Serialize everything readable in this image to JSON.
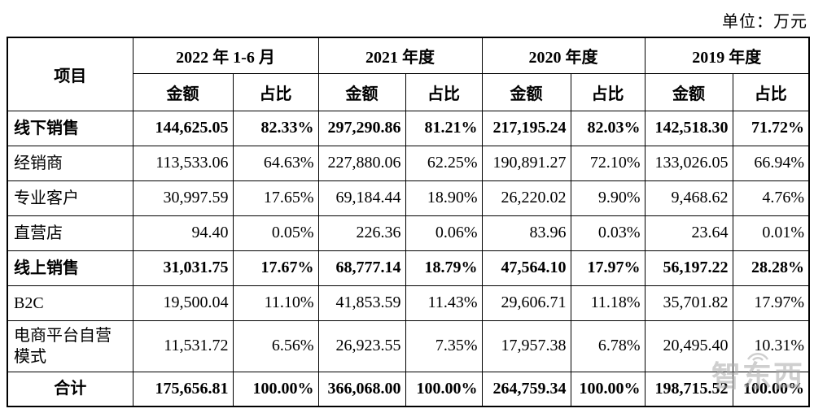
{
  "unit_label": "单位：万元",
  "watermark": {
    "text": "智东西"
  },
  "table": {
    "item_header": "项目",
    "col_groups": [
      {
        "label": "2022 年 1-6 月"
      },
      {
        "label": "2021 年度"
      },
      {
        "label": "2020 年度"
      },
      {
        "label": "2019 年度"
      }
    ],
    "sub_headers": {
      "amount": "金额",
      "ratio": "占比"
    },
    "rows": [
      {
        "label": "线下销售",
        "bold": true,
        "total": false,
        "values": [
          "144,625.05",
          "82.33%",
          "297,290.86",
          "81.21%",
          "217,195.24",
          "82.03%",
          "142,518.30",
          "71.72%"
        ]
      },
      {
        "label": "经销商",
        "bold": false,
        "total": false,
        "values": [
          "113,533.06",
          "64.63%",
          "227,880.06",
          "62.25%",
          "190,891.27",
          "72.10%",
          "133,026.05",
          "66.94%"
        ]
      },
      {
        "label": "专业客户",
        "bold": false,
        "total": false,
        "values": [
          "30,997.59",
          "17.65%",
          "69,184.44",
          "18.90%",
          "26,220.02",
          "9.90%",
          "9,468.62",
          "4.76%"
        ]
      },
      {
        "label": "直营店",
        "bold": false,
        "total": false,
        "values": [
          "94.40",
          "0.05%",
          "226.36",
          "0.06%",
          "83.96",
          "0.03%",
          "23.64",
          "0.01%"
        ]
      },
      {
        "label": "线上销售",
        "bold": true,
        "total": false,
        "values": [
          "31,031.75",
          "17.67%",
          "68,777.14",
          "18.79%",
          "47,564.10",
          "17.97%",
          "56,197.22",
          "28.28%"
        ]
      },
      {
        "label": "B2C",
        "bold": false,
        "total": false,
        "values": [
          "19,500.04",
          "11.10%",
          "41,853.59",
          "11.43%",
          "29,606.71",
          "11.18%",
          "35,701.82",
          "17.97%"
        ]
      },
      {
        "label": "电商平台自营模式",
        "bold": false,
        "total": false,
        "values": [
          "11,531.72",
          "6.56%",
          "26,923.55",
          "7.35%",
          "17,957.38",
          "6.78%",
          "20,495.40",
          "10.31%"
        ]
      },
      {
        "label": "合计",
        "bold": true,
        "total": true,
        "values": [
          "175,656.81",
          "100.00%",
          "366,068.00",
          "100.00%",
          "264,759.34",
          "100.00%",
          "198,715.52",
          "100.00%"
        ]
      }
    ]
  }
}
